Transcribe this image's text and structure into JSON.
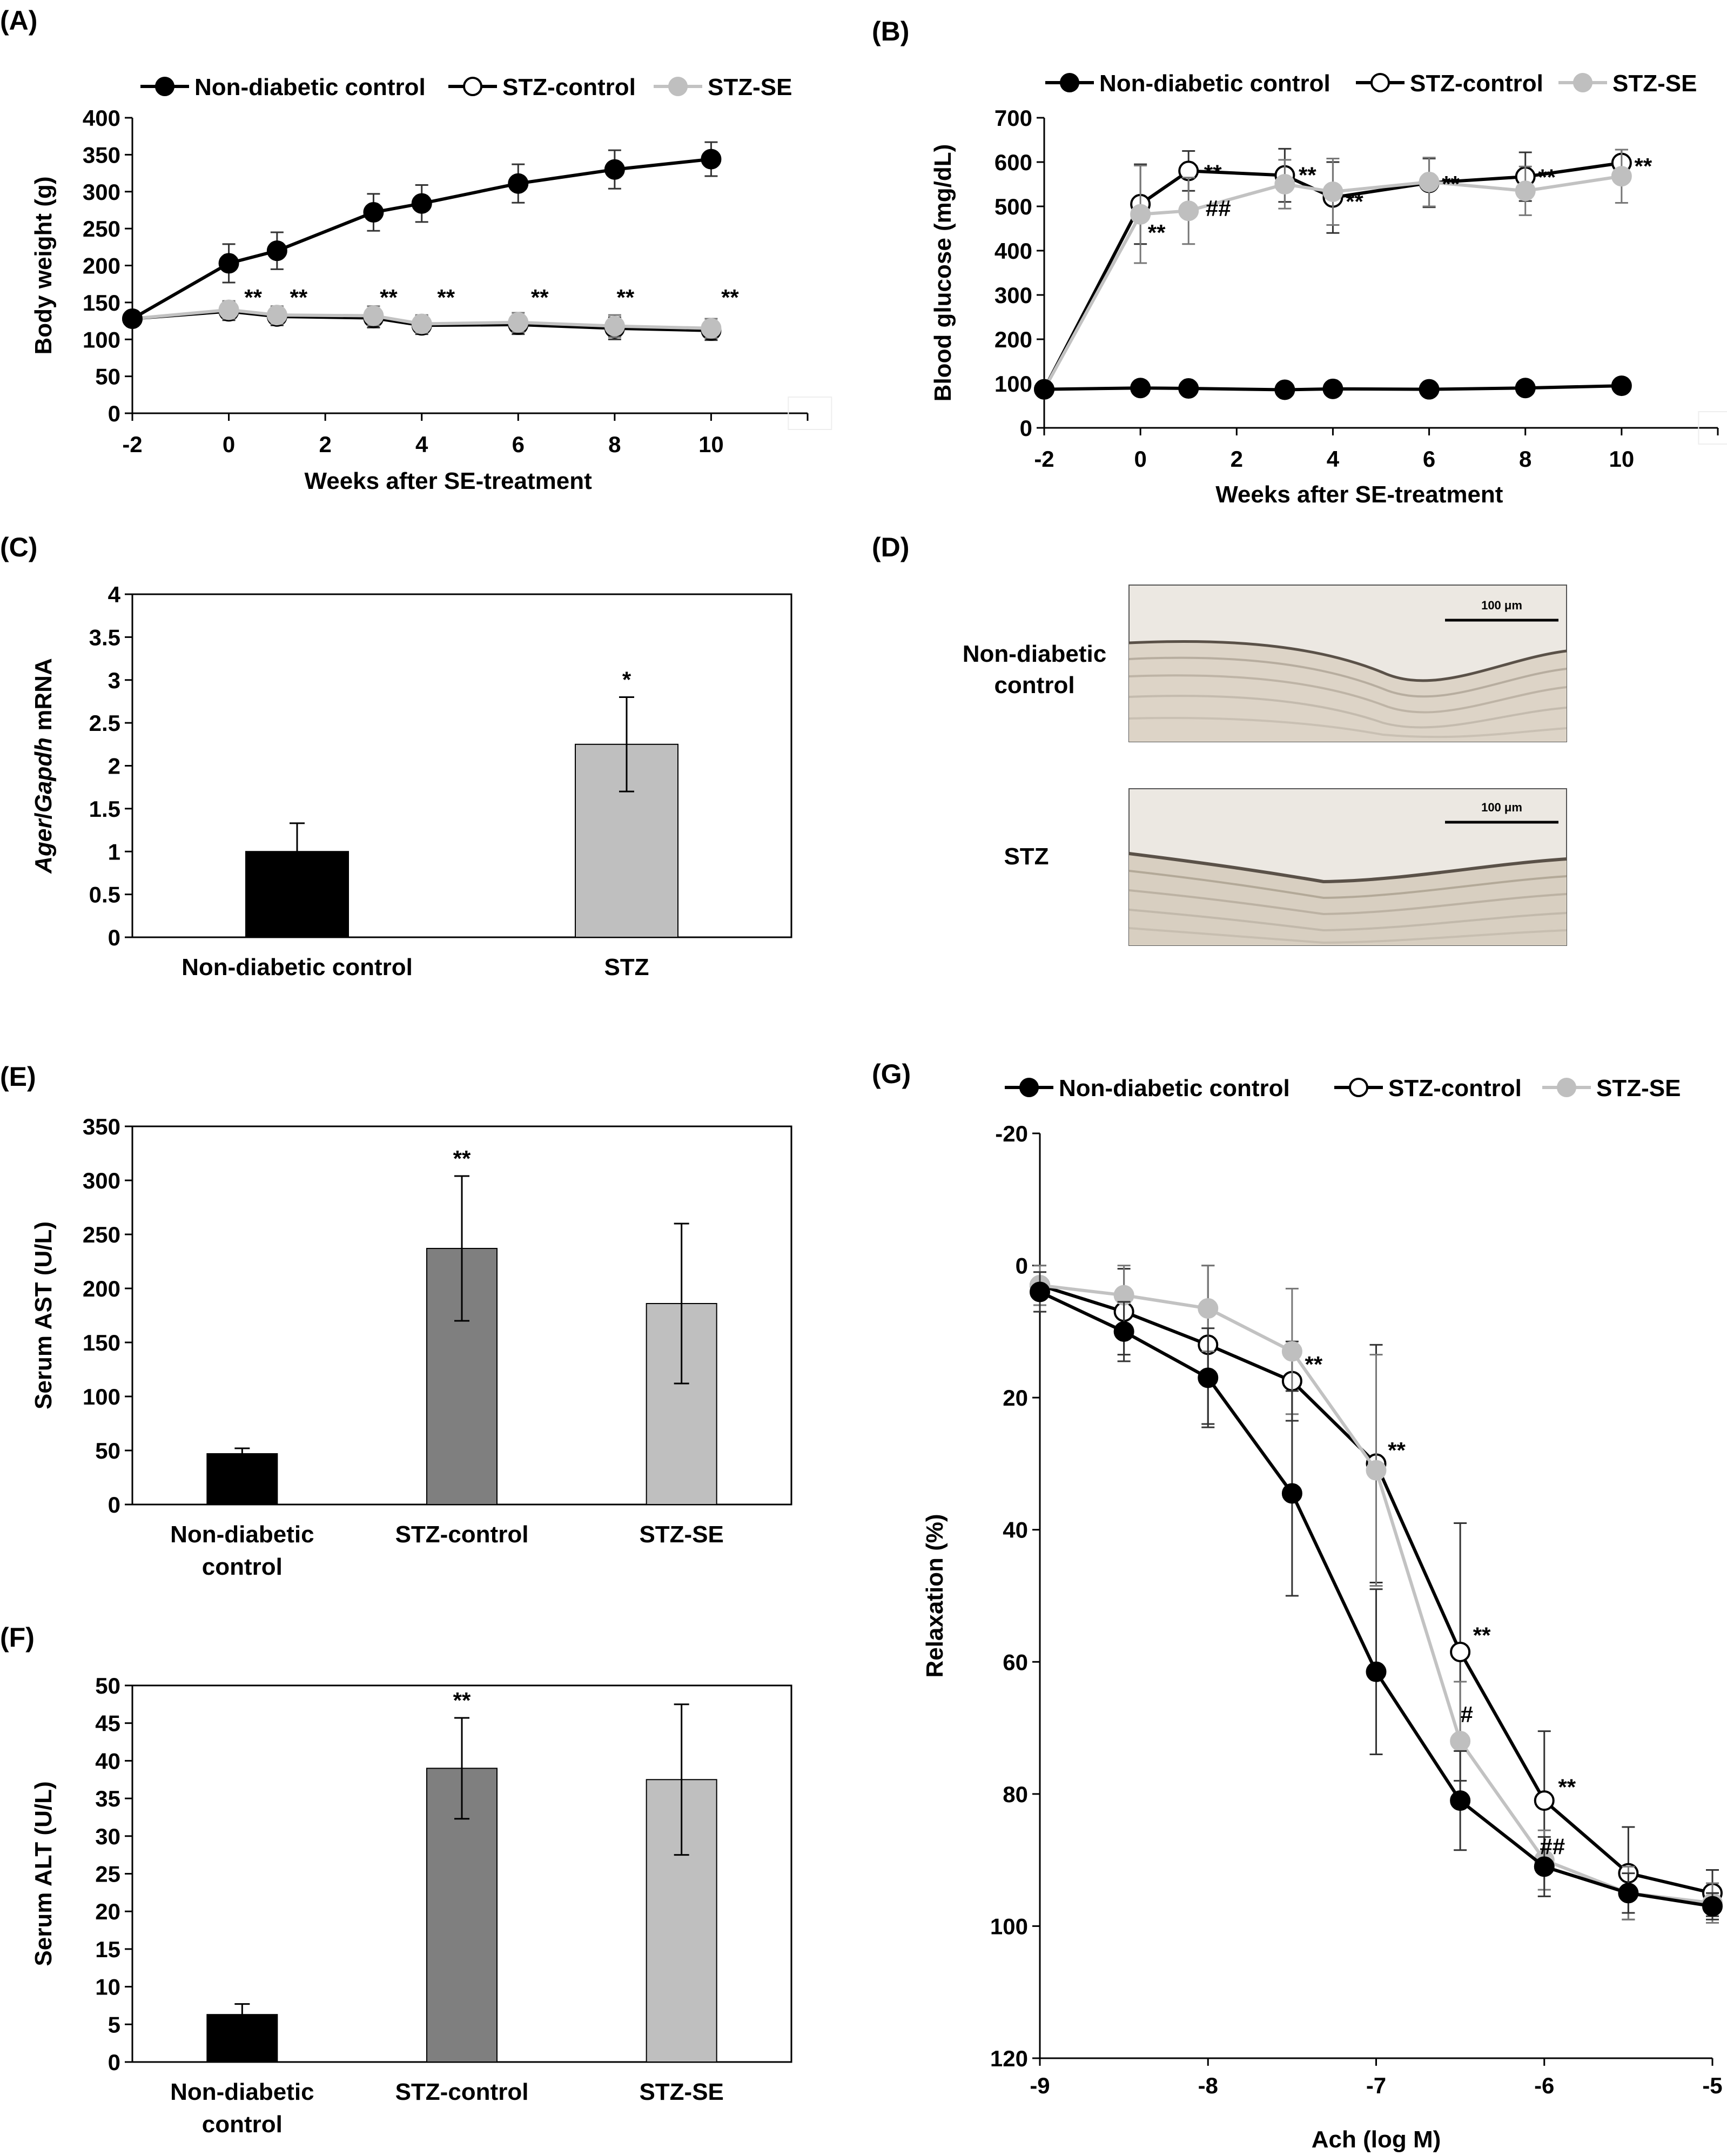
{
  "colors": {
    "black": "#000000",
    "white": "#ffffff",
    "light_gray": "#bfbfbf",
    "mid_gray": "#7f7f7f",
    "line_gray": "#c2c2c2",
    "tissue_bg": "#ddd6cc"
  },
  "chart_data": [
    {
      "id": "A",
      "panel_label": "(A)",
      "type": "line",
      "xlabel": "Weeks after SE-treatment",
      "ylabel": "Body weight (g)",
      "x_ticks": [
        -2,
        0,
        2,
        4,
        6,
        8,
        10
      ],
      "x_tick_labels": [
        "-2",
        "0",
        "2",
        "4",
        "6",
        "8",
        "10"
      ],
      "xlim": [
        -2,
        12
      ],
      "y_ticks": [
        0,
        50,
        100,
        150,
        200,
        250,
        300,
        350,
        400
      ],
      "y_tick_labels": [
        "0",
        "50",
        "100",
        "150",
        "200",
        "250",
        "300",
        "350",
        "400"
      ],
      "ylim": [
        0,
        400
      ],
      "legend": [
        "Non-diabetic control",
        "STZ-control",
        "STZ-SE"
      ],
      "x": [
        -2,
        0,
        1,
        3,
        4,
        6,
        8,
        10
      ],
      "series": [
        {
          "name": "Non-diabetic control",
          "style": "black",
          "values": [
            128,
            203,
            220,
            272,
            284,
            311,
            330,
            344
          ],
          "err": [
            10,
            26,
            25,
            25,
            25,
            26,
            26,
            23
          ]
        },
        {
          "name": "STZ-control",
          "style": "open",
          "values": [
            128,
            138,
            131,
            129,
            119,
            120,
            115,
            112
          ],
          "err": [
            8,
            12,
            12,
            13,
            12,
            13,
            15,
            13
          ]
        },
        {
          "name": "STZ-SE",
          "style": "gray",
          "values": [
            128,
            140,
            133,
            132,
            121,
            123,
            118,
            115
          ],
          "err": [
            8,
            12,
            12,
            13,
            12,
            13,
            15,
            13
          ]
        }
      ],
      "annotations": [
        {
          "x": 0,
          "text": "**"
        },
        {
          "x": 1,
          "text": "**"
        },
        {
          "x": 3,
          "text": "**"
        },
        {
          "x": 4,
          "text": "**"
        },
        {
          "x": 6,
          "text": "**"
        },
        {
          "x": 8,
          "text": "**"
        },
        {
          "x": 10,
          "text": "**"
        }
      ]
    },
    {
      "id": "B",
      "panel_label": "(B)",
      "type": "line",
      "xlabel": "Weeks after SE-treatment",
      "ylabel": "Blood glucose (mg/dL)",
      "x_ticks": [
        -2,
        0,
        2,
        4,
        6,
        8,
        10
      ],
      "x_tick_labels": [
        "-2",
        "0",
        "2",
        "4",
        "6",
        "8",
        "10"
      ],
      "xlim": [
        -2,
        12
      ],
      "y_ticks": [
        0,
        100,
        200,
        300,
        400,
        500,
        600,
        700
      ],
      "y_tick_labels": [
        "0",
        "100",
        "200",
        "300",
        "400",
        "500",
        "600",
        "700"
      ],
      "ylim": [
        0,
        700
      ],
      "legend": [
        "Non-diabetic control",
        "STZ-control",
        "STZ-SE"
      ],
      "x": [
        -2,
        0,
        1,
        3,
        4,
        6,
        8,
        10
      ],
      "series": [
        {
          "name": "Non-diabetic control",
          "style": "black",
          "values": [
            87,
            90,
            89,
            86,
            88,
            87,
            90,
            95
          ],
          "err": [
            6,
            6,
            6,
            6,
            6,
            6,
            6,
            6
          ]
        },
        {
          "name": "STZ-control",
          "style": "open",
          "values": [
            87,
            505,
            580,
            570,
            520,
            553,
            567,
            598
          ],
          "err": [
            8,
            90,
            45,
            60,
            80,
            55,
            55,
            30
          ]
        },
        {
          "name": "STZ-SE",
          "style": "gray",
          "values": [
            87,
            482,
            490,
            550,
            533,
            555,
            535,
            568
          ],
          "err": [
            8,
            110,
            75,
            55,
            75,
            55,
            55,
            60
          ]
        }
      ],
      "annotations": [
        {
          "x": 0,
          "text": "**"
        },
        {
          "x": 1,
          "text": "**"
        },
        {
          "x": 1,
          "text": "##"
        },
        {
          "x": 3,
          "text": "**"
        },
        {
          "x": 4,
          "text": "**"
        },
        {
          "x": 6,
          "text": "**"
        },
        {
          "x": 8,
          "text": "**"
        },
        {
          "x": 10,
          "text": "**"
        }
      ]
    },
    {
      "id": "C",
      "panel_label": "(C)",
      "type": "bar",
      "ylabel_italic_1": "Ager",
      "ylabel_sep": "/",
      "ylabel_italic_2": "Gapdh",
      "ylabel_rest": " mRNA",
      "categories": [
        "Non-diabetic control",
        "STZ"
      ],
      "values": [
        1.0,
        2.25
      ],
      "err": [
        0.33,
        0.55
      ],
      "bar_colors": [
        "black",
        "light_gray"
      ],
      "y_ticks": [
        0,
        0.5,
        1,
        1.5,
        2,
        2.5,
        3,
        3.5,
        4
      ],
      "y_tick_labels": [
        "0",
        "0.5",
        "1",
        "1.5",
        "2",
        "2.5",
        "3",
        "3.5",
        "4"
      ],
      "ylim": [
        0,
        4
      ],
      "annotations": [
        {
          "bar": 1,
          "text": "*"
        }
      ]
    },
    {
      "id": "E",
      "panel_label": "(E)",
      "type": "bar",
      "ylabel": "Serum AST (U/L)",
      "categories": [
        "Non-diabetic control",
        "STZ-control",
        "STZ-SE"
      ],
      "values": [
        47,
        237,
        186
      ],
      "err": [
        5,
        67,
        74
      ],
      "bar_colors": [
        "black",
        "mid_gray",
        "light_gray"
      ],
      "y_ticks": [
        0,
        50,
        100,
        150,
        200,
        250,
        300,
        350
      ],
      "y_tick_labels": [
        "0",
        "50",
        "100",
        "150",
        "200",
        "250",
        "300",
        "350"
      ],
      "ylim": [
        0,
        350
      ],
      "annotations": [
        {
          "bar": 1,
          "text": "**"
        }
      ]
    },
    {
      "id": "F",
      "panel_label": "(F)",
      "type": "bar",
      "ylabel": "Serum ALT  (U/L)",
      "categories": [
        "Non-diabetic control",
        "STZ-control",
        "STZ-SE"
      ],
      "values": [
        6.3,
        39,
        37.5
      ],
      "err": [
        1.4,
        6.7,
        10
      ],
      "bar_colors": [
        "black",
        "mid_gray",
        "light_gray"
      ],
      "y_ticks": [
        0,
        5,
        10,
        15,
        20,
        25,
        30,
        35,
        40,
        45,
        50
      ],
      "y_tick_labels": [
        "0",
        "5",
        "10",
        "15",
        "20",
        "25",
        "30",
        "35",
        "40",
        "45",
        "50"
      ],
      "ylim": [
        0,
        50
      ],
      "annotations": [
        {
          "bar": 1,
          "text": "**"
        }
      ]
    },
    {
      "id": "G",
      "panel_label": "(G)",
      "type": "line",
      "xlabel": "Ach (log M)",
      "ylabel": "Relaxation (%)",
      "x_ticks": [
        -9,
        -8,
        -7,
        -6,
        -5
      ],
      "x_tick_labels": [
        "-9",
        "-8",
        "-7",
        "-6",
        "-5"
      ],
      "xlim": [
        -9,
        -5
      ],
      "y_ticks": [
        -20,
        0,
        20,
        40,
        60,
        80,
        100,
        120
      ],
      "y_tick_labels": [
        "-20",
        "0",
        "20",
        "40",
        "60",
        "80",
        "100",
        "120"
      ],
      "ylim": [
        -20,
        120
      ],
      "y_inverted": true,
      "legend": [
        "Non-diabetic control",
        "STZ-control",
        "STZ-SE"
      ],
      "x": [
        -9,
        -8.5,
        -8,
        -7.5,
        -7,
        -6.5,
        -6,
        -5.5,
        -5
      ],
      "series": [
        {
          "name": "Non-diabetic control",
          "style": "black",
          "values": [
            4,
            10,
            17,
            34.5,
            61.5,
            81,
            91,
            95,
            97
          ],
          "err": [
            3,
            4.5,
            7.5,
            15.5,
            12.5,
            7.5,
            4.5,
            3,
            2
          ]
        },
        {
          "name": "STZ-control",
          "style": "open",
          "values": [
            3,
            7,
            12,
            17.5,
            30,
            58.5,
            81,
            92,
            95
          ],
          "err": [
            3,
            6.5,
            12,
            6,
            18,
            19.5,
            10.5,
            7,
            3.5
          ]
        },
        {
          "name": "STZ-SE",
          "style": "gray",
          "values": [
            3,
            4.5,
            6.5,
            13,
            31,
            72,
            90,
            95,
            96.5
          ],
          "err": [
            3,
            4.5,
            6.5,
            9.5,
            17.5,
            9,
            4.5,
            4,
            3
          ]
        }
      ],
      "annotations": [
        {
          "x": -7.5,
          "text": "**"
        },
        {
          "x": -7,
          "text": "**"
        },
        {
          "x": -6.5,
          "text": "**"
        },
        {
          "x": -6.5,
          "text": "#"
        },
        {
          "x": -6,
          "text": "**"
        },
        {
          "x": -6,
          "text": "##"
        }
      ]
    }
  ],
  "panel_d": {
    "panel_label": "(D)",
    "row_1_label_line1": "Non-diabetic",
    "row_1_label_line2": "control",
    "row_2_label": "STZ",
    "scale_bar_text": "100 μm"
  }
}
